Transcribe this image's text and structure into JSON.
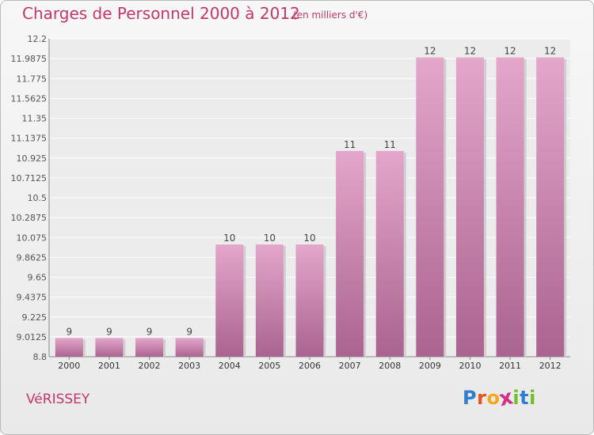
{
  "header": {
    "title": "Charges de Personnel 2000 à 2012",
    "subtitle": "(en milliers d'€)"
  },
  "footer": {
    "location": "VéRISSEY",
    "brand_letters": [
      "P",
      "r",
      "o",
      "x",
      "i",
      "t",
      "i"
    ],
    "brand_colors": [
      "#2f7fd0",
      "#e8501c",
      "#f2a81a",
      "#d32f8a",
      "#6fbf2a",
      "#2f7fd0",
      "#6fbf2a"
    ]
  },
  "chart_data": {
    "type": "bar",
    "categories": [
      "2000",
      "2001",
      "2002",
      "2003",
      "2004",
      "2005",
      "2006",
      "2007",
      "2008",
      "2009",
      "2010",
      "2011",
      "2012"
    ],
    "values": [
      9,
      9,
      9,
      9,
      10,
      10,
      10,
      11,
      11,
      12,
      12,
      12,
      12
    ],
    "data_labels": [
      "9",
      "9",
      "9",
      "9",
      "10",
      "10",
      "10",
      "11",
      "11",
      "12",
      "12",
      "12",
      "12"
    ],
    "ylim": [
      8.8,
      12.2
    ],
    "yticks": [
      8.8,
      9.0125,
      9.225,
      9.4375,
      9.65,
      9.8625,
      10.075,
      10.2875,
      10.5,
      10.7125,
      10.925,
      11.1375,
      11.35,
      11.5625,
      11.775,
      11.9875,
      12.2
    ],
    "ytick_labels": [
      "8.8",
      "9.0125",
      "9.225",
      "9.4375",
      "9.65",
      "9.8625",
      "10.075",
      "10.2875",
      "10.5",
      "10.7125",
      "10.925",
      "11.1375",
      "11.35",
      "11.5625",
      "11.775",
      "11.9875",
      "12.2"
    ],
    "grid": true,
    "bar_color_top": "#e4a6cb",
    "bar_color_bottom": "#a9648f"
  }
}
